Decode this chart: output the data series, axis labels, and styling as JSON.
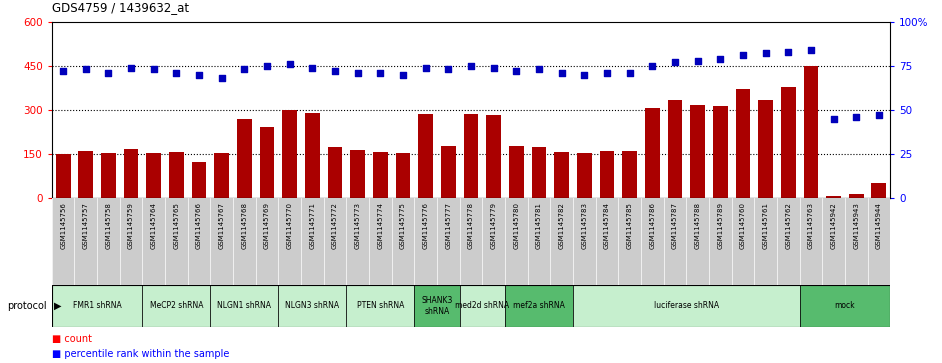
{
  "title": "GDS4759 / 1439632_at",
  "samples": [
    "GSM1145756",
    "GSM1145757",
    "GSM1145758",
    "GSM1145759",
    "GSM1145764",
    "GSM1145765",
    "GSM1145766",
    "GSM1145767",
    "GSM1145768",
    "GSM1145769",
    "GSM1145770",
    "GSM1145771",
    "GSM1145772",
    "GSM1145773",
    "GSM1145774",
    "GSM1145775",
    "GSM1145776",
    "GSM1145777",
    "GSM1145778",
    "GSM1145779",
    "GSM1145780",
    "GSM1145781",
    "GSM1145782",
    "GSM1145783",
    "GSM1145784",
    "GSM1145785",
    "GSM1145786",
    "GSM1145787",
    "GSM1145788",
    "GSM1145789",
    "GSM1145760",
    "GSM1145761",
    "GSM1145762",
    "GSM1145763",
    "GSM1145942",
    "GSM1145943",
    "GSM1145944"
  ],
  "counts": [
    150,
    160,
    153,
    167,
    153,
    156,
    122,
    153,
    270,
    243,
    300,
    290,
    172,
    163,
    157,
    153,
    285,
    178,
    285,
    282,
    177,
    172,
    157,
    153,
    158,
    161,
    307,
    332,
    318,
    314,
    372,
    332,
    378,
    450,
    5,
    12,
    52
  ],
  "percentiles": [
    72,
    73,
    71,
    74,
    73,
    71,
    70,
    68,
    73,
    75,
    76,
    74,
    72,
    71,
    71,
    70,
    74,
    73,
    75,
    74,
    72,
    73,
    71,
    70,
    71,
    71,
    75,
    77,
    78,
    79,
    81,
    82,
    83,
    84,
    45,
    46,
    47
  ],
  "protocols": [
    {
      "label": "FMR1 shRNA",
      "start": 0,
      "end": 4,
      "color": "#c6efce",
      "dark": false
    },
    {
      "label": "MeCP2 shRNA",
      "start": 4,
      "end": 7,
      "color": "#c6efce",
      "dark": false
    },
    {
      "label": "NLGN1 shRNA",
      "start": 7,
      "end": 10,
      "color": "#c6efce",
      "dark": false
    },
    {
      "label": "NLGN3 shRNA",
      "start": 10,
      "end": 13,
      "color": "#c6efce",
      "dark": false
    },
    {
      "label": "PTEN shRNA",
      "start": 13,
      "end": 16,
      "color": "#c6efce",
      "dark": false
    },
    {
      "label": "SHANK3\nshRNA",
      "start": 16,
      "end": 18,
      "color": "#57bb6e",
      "dark": true
    },
    {
      "label": "med2d shRNA",
      "start": 18,
      "end": 20,
      "color": "#c6efce",
      "dark": false
    },
    {
      "label": "mef2a shRNA",
      "start": 20,
      "end": 23,
      "color": "#57bb6e",
      "dark": true
    },
    {
      "label": "luciferase shRNA",
      "start": 23,
      "end": 33,
      "color": "#c6efce",
      "dark": false
    },
    {
      "label": "mock",
      "start": 33,
      "end": 37,
      "color": "#57bb6e",
      "dark": true
    }
  ],
  "bar_color": "#aa0000",
  "dot_color": "#0000bb",
  "ylim_left": [
    0,
    600
  ],
  "ylim_right": [
    0,
    100
  ],
  "yticks_left": [
    0,
    150,
    300,
    450,
    600
  ],
  "yticks_right": [
    0,
    25,
    50,
    75,
    100
  ],
  "hlines": [
    150,
    300,
    450
  ],
  "plot_bg": "#ffffff",
  "tick_area_bg": "#cccccc"
}
